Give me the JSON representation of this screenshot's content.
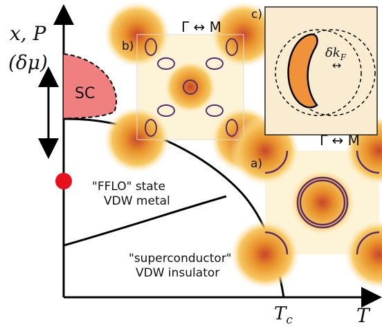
{
  "axes": {
    "y_label": "x, P",
    "y_label_alt": "(δμ)",
    "x_label": "T",
    "x_mark": {
      "main": "T",
      "sub": "c"
    }
  },
  "regions": {
    "sc": "SC",
    "fflo": {
      "line1": "\"FFLO\" state",
      "line2": "VDW metal"
    },
    "insulator": {
      "line1": "\"superconductor\"",
      "line2": "VDW insulator"
    }
  },
  "insets": {
    "b": {
      "tag": "b)",
      "title": "Γ ↔ M"
    },
    "a": {
      "tag": "a)",
      "title": "Γ ↔ M"
    },
    "c": {
      "tag": "c)",
      "label": {
        "main": "δk",
        "sub": "F"
      },
      "arrow": "↔"
    }
  }
}
